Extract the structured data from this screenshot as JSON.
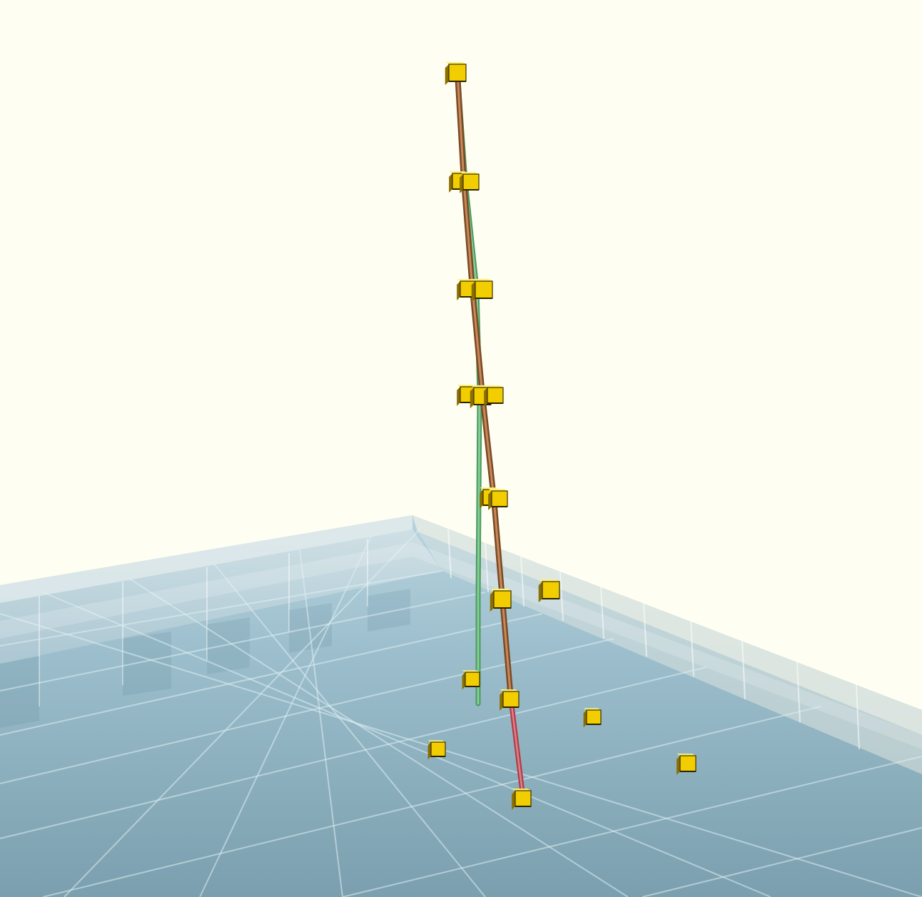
{
  "scene": {
    "background": "#fefff2",
    "water_color": "#6f9aae",
    "water_highlight": "#b9d6e4",
    "wall_color": "#d7e6ea",
    "marker_color": "#f2cd00",
    "marker_edge": "#3a2f00",
    "rods": [
      {
        "name": "green-rod",
        "color": "#6fb884"
      },
      {
        "name": "brown-rod",
        "color": "#a86a3a"
      },
      {
        "name": "red-rod",
        "color": "#c8505a"
      }
    ]
  }
}
